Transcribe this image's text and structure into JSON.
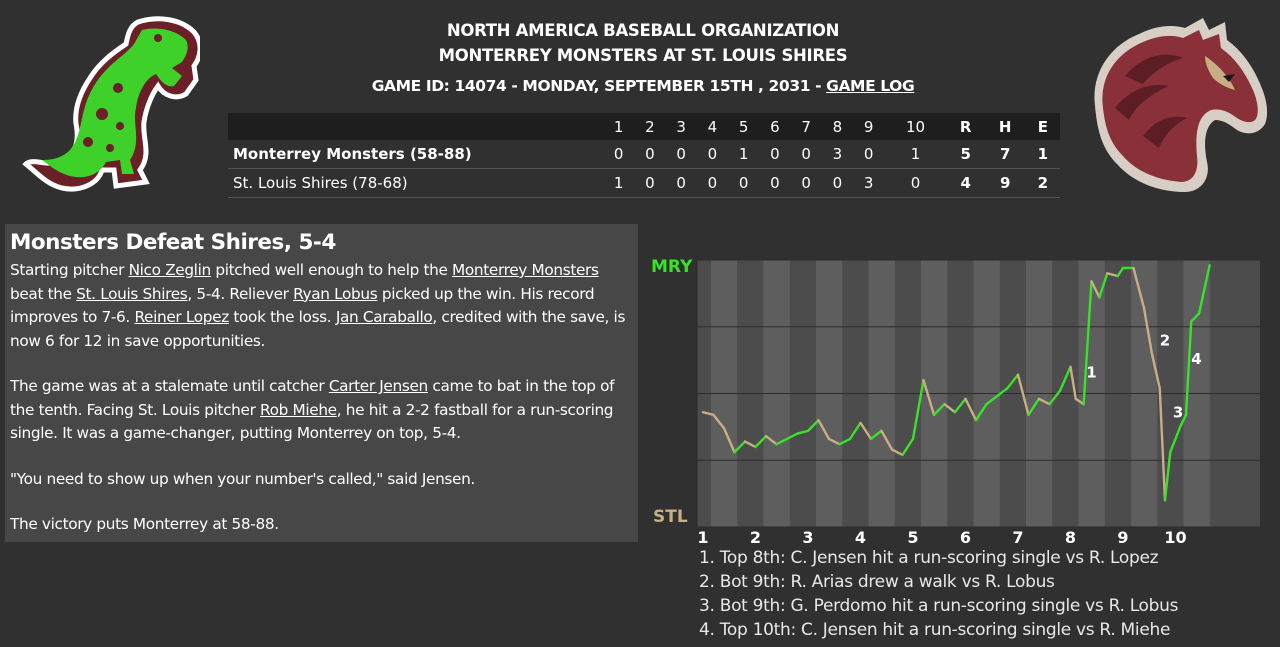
{
  "header": {
    "org": "NORTH AMERICA BASEBALL ORGANIZATION",
    "matchup": "MONTERREY MONSTERS AT ST. LOUIS SHIRES",
    "game_id_text": "GAME ID: 14074 - MONDAY, SEPTEMBER 15TH , 2031 - ",
    "game_log_link": "GAME LOG"
  },
  "logos": {
    "away": "monsters-dinosaur-logo",
    "home": "shires-horse-logo"
  },
  "linescore": {
    "columns": [
      "1",
      "2",
      "3",
      "4",
      "5",
      "6",
      "7",
      "8",
      "9",
      "10",
      "R",
      "H",
      "E"
    ],
    "away": {
      "team": "Monterrey Monsters (58-88)",
      "innings": [
        "0",
        "0",
        "0",
        "0",
        "1",
        "0",
        "0",
        "3",
        "0",
        "1"
      ],
      "R": "5",
      "H": "7",
      "E": "1"
    },
    "home": {
      "team": "St. Louis Shires (78-68)",
      "innings": [
        "1",
        "0",
        "0",
        "0",
        "0",
        "0",
        "0",
        "0",
        "3",
        "0"
      ],
      "R": "4",
      "H": "9",
      "E": "2"
    }
  },
  "article": {
    "headline": "Monsters Defeat Shires, 5-4",
    "p1": {
      "t1": "Starting pitcher ",
      "l1": "Nico Zeglin",
      "t2": " pitched well enough to help the ",
      "l2": "Monterrey Monsters",
      "t3": " beat the ",
      "l3": "St. Louis Shires",
      "t4": ", 5-4. Reliever ",
      "l4": "Ryan Lobus",
      "t5": " picked up the win. His record improves to 7-6. ",
      "l5": "Reiner Lopez",
      "t6": " took the loss. ",
      "l6": "Jan Caraballo",
      "t7": ", credited with the save, is now 6 for 12 in save opportunities."
    },
    "p2": {
      "t1": "The game was at a stalemate until catcher ",
      "l1": "Carter Jensen",
      "t2": " came to bat in the top of the tenth. Facing St. Louis pitcher ",
      "l2": "Rob Miehe",
      "t3": ", he hit a 2-2 fastball for a run-scoring single. It was a game-changer, putting Monterrey on top, 5-4."
    },
    "p3": "\"You need to show up when your number's called,\" said Jensen.",
    "p4": "The victory puts Monterrey at 58-88."
  },
  "chart_data": {
    "type": "line",
    "y_top_label": "MRY",
    "y_bottom_label": "STL",
    "ylim": [
      0,
      100
    ],
    "x_labels": [
      "1",
      "2",
      "3",
      "4",
      "5",
      "6",
      "7",
      "8",
      "9",
      "10"
    ],
    "away_color": "#39e12b",
    "home_color": "#c9ad85",
    "series": [
      {
        "x": 1.0,
        "y": 43
      },
      {
        "x": 1.2,
        "y": 42
      },
      {
        "x": 1.4,
        "y": 37
      },
      {
        "x": 1.6,
        "y": 28
      },
      {
        "x": 1.8,
        "y": 32
      },
      {
        "x": 2.0,
        "y": 30
      },
      {
        "x": 2.2,
        "y": 34
      },
      {
        "x": 2.4,
        "y": 31
      },
      {
        "x": 2.6,
        "y": 33
      },
      {
        "x": 2.8,
        "y": 35
      },
      {
        "x": 3.0,
        "y": 36
      },
      {
        "x": 3.2,
        "y": 40
      },
      {
        "x": 3.4,
        "y": 33
      },
      {
        "x": 3.6,
        "y": 31
      },
      {
        "x": 3.8,
        "y": 33
      },
      {
        "x": 4.0,
        "y": 39
      },
      {
        "x": 4.2,
        "y": 33
      },
      {
        "x": 4.4,
        "y": 36
      },
      {
        "x": 4.6,
        "y": 29
      },
      {
        "x": 4.8,
        "y": 27
      },
      {
        "x": 5.0,
        "y": 33
      },
      {
        "x": 5.2,
        "y": 55
      },
      {
        "x": 5.4,
        "y": 42
      },
      {
        "x": 5.6,
        "y": 46
      },
      {
        "x": 5.8,
        "y": 43
      },
      {
        "x": 6.0,
        "y": 48
      },
      {
        "x": 6.2,
        "y": 40
      },
      {
        "x": 6.4,
        "y": 46
      },
      {
        "x": 6.6,
        "y": 49
      },
      {
        "x": 6.8,
        "y": 52
      },
      {
        "x": 7.0,
        "y": 57
      },
      {
        "x": 7.2,
        "y": 42
      },
      {
        "x": 7.4,
        "y": 48
      },
      {
        "x": 7.6,
        "y": 46
      },
      {
        "x": 7.8,
        "y": 51
      },
      {
        "x": 8.0,
        "y": 60
      },
      {
        "x": 8.1,
        "y": 48
      },
      {
        "x": 8.25,
        "y": 46
      },
      {
        "x": 8.4,
        "y": 92
      },
      {
        "x": 8.55,
        "y": 86
      },
      {
        "x": 8.7,
        "y": 95
      },
      {
        "x": 8.9,
        "y": 94
      },
      {
        "x": 9.0,
        "y": 97
      },
      {
        "x": 9.2,
        "y": 97
      },
      {
        "x": 9.4,
        "y": 82
      },
      {
        "x": 9.55,
        "y": 65
      },
      {
        "x": 9.7,
        "y": 52
      },
      {
        "x": 9.8,
        "y": 10
      },
      {
        "x": 9.9,
        "y": 28
      },
      {
        "x": 10.1,
        "y": 38
      },
      {
        "x": 10.2,
        "y": 42
      },
      {
        "x": 10.3,
        "y": 77
      },
      {
        "x": 10.45,
        "y": 80
      },
      {
        "x": 10.65,
        "y": 98
      }
    ],
    "markers": [
      {
        "label": "1",
        "x": 8.3,
        "y": 56
      },
      {
        "label": "2",
        "x": 9.7,
        "y": 68
      },
      {
        "label": "3",
        "x": 9.95,
        "y": 41
      },
      {
        "label": "4",
        "x": 10.3,
        "y": 61
      }
    ]
  },
  "key_plays": [
    "1. Top 8th: C. Jensen hit a run-scoring single vs R. Lopez",
    "2. Bot 9th: R. Arias drew a walk vs R. Lobus",
    "3. Bot 9th: G. Perdomo hit a run-scoring single vs R. Lobus",
    "4. Top 10th: C. Jensen hit a run-scoring single vs R. Miehe"
  ]
}
